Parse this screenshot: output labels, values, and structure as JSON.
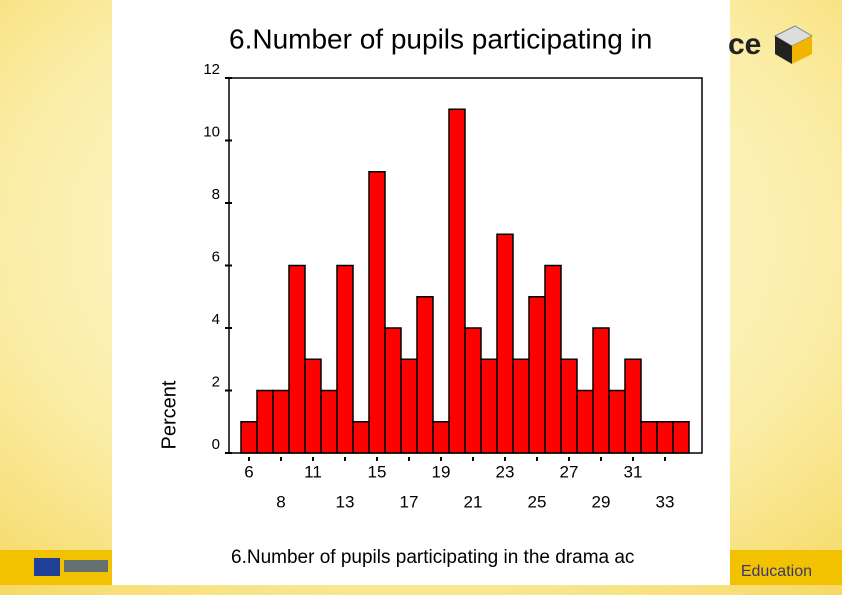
{
  "slide": {
    "logo_text": "ce",
    "footer_text": "Education"
  },
  "chart_data": {
    "type": "bar",
    "title": "6.Number of pupils participating in",
    "xlabel": "6.Number of pupils participating in the drama ac",
    "ylabel": "Percent",
    "categories": [
      "6",
      null,
      "8",
      null,
      "11",
      null,
      "13",
      null,
      "15",
      null,
      "17",
      null,
      "19",
      null,
      "21",
      null,
      "23",
      null,
      "25",
      null,
      "27",
      null,
      "29",
      null,
      "31",
      null,
      "33",
      null
    ],
    "values": [
      1,
      2,
      2,
      6,
      3,
      2,
      6,
      1,
      9,
      4,
      3,
      5,
      1,
      11,
      4,
      3,
      7,
      3,
      5,
      6,
      3,
      2,
      4,
      2,
      3,
      1,
      1,
      1
    ],
    "color": "#ff0000",
    "ylim": [
      0,
      12
    ],
    "yticks": [
      0,
      2,
      4,
      6,
      8,
      10,
      12
    ]
  }
}
